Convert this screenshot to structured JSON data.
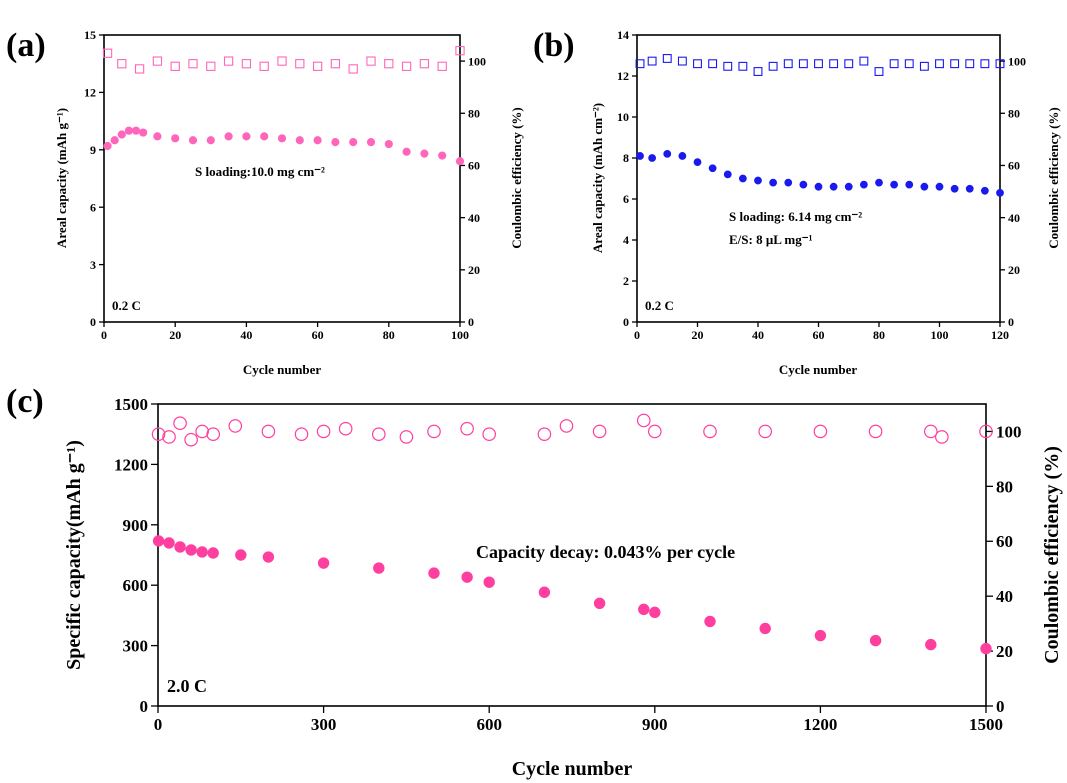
{
  "chart_data": [
    {
      "type": "scatter",
      "panel": "(a)",
      "xlabel": "Cycle number",
      "ylabel": "Areal capacity (mAh g⁻¹)",
      "ylabel_right": "Coulombic efficiency (%)",
      "xlim": [
        0,
        100
      ],
      "ylim": [
        0,
        15
      ],
      "ylim_right": [
        0,
        110
      ],
      "xticks": [
        0,
        20,
        40,
        60,
        80,
        100
      ],
      "yticks": [
        0,
        3,
        6,
        9,
        12,
        15
      ],
      "yticks_right": [
        0,
        20,
        40,
        60,
        80,
        100
      ],
      "rate_label": "0.2 C",
      "annotations": [
        "S loading:10.0 mg cm⁻²"
      ],
      "series": [
        {
          "axis": "left",
          "marker": "circle-filled",
          "color": "#ff66bb",
          "x": [
            1,
            3,
            5,
            7,
            9,
            11,
            15,
            20,
            25,
            30,
            35,
            40,
            45,
            50,
            55,
            60,
            65,
            70,
            75,
            80,
            85,
            90,
            95,
            100
          ],
          "y": [
            9.2,
            9.5,
            9.8,
            10.0,
            10.0,
            9.9,
            9.7,
            9.6,
            9.5,
            9.5,
            9.7,
            9.7,
            9.7,
            9.6,
            9.5,
            9.5,
            9.4,
            9.4,
            9.4,
            9.3,
            8.9,
            8.8,
            8.7,
            8.4
          ]
        },
        {
          "axis": "right",
          "marker": "square-open",
          "color": "#ff66bb",
          "x": [
            1,
            5,
            10,
            15,
            20,
            25,
            30,
            35,
            40,
            45,
            50,
            55,
            60,
            65,
            70,
            75,
            80,
            85,
            90,
            95,
            100
          ],
          "y": [
            103,
            99,
            97,
            100,
            98,
            99,
            98,
            100,
            99,
            98,
            100,
            99,
            98,
            99,
            97,
            100,
            99,
            98,
            99,
            98,
            104
          ]
        }
      ]
    },
    {
      "type": "scatter",
      "panel": "(b)",
      "xlabel": "Cycle number",
      "ylabel": "Areal capacity (mAh cm⁻²)",
      "ylabel_right": "Coulombic efficiency (%)",
      "xlim": [
        0,
        120
      ],
      "ylim": [
        0,
        14
      ],
      "ylim_right": [
        0,
        110
      ],
      "xticks": [
        0,
        20,
        40,
        60,
        80,
        100,
        120
      ],
      "yticks": [
        0,
        2,
        4,
        6,
        8,
        10,
        12,
        14
      ],
      "yticks_right": [
        0,
        20,
        40,
        60,
        80,
        100
      ],
      "rate_label": "0.2 C",
      "annotations": [
        "S loading: 6.14 mg cm⁻²",
        "E/S: 8 μL mg⁻¹"
      ],
      "series": [
        {
          "axis": "left",
          "marker": "circle-filled",
          "color": "#1a1aee",
          "x": [
            1,
            5,
            10,
            15,
            20,
            25,
            30,
            35,
            40,
            45,
            50,
            55,
            60,
            65,
            70,
            75,
            80,
            85,
            90,
            95,
            100,
            105,
            110,
            115,
            120
          ],
          "y": [
            8.1,
            8.0,
            8.2,
            8.1,
            7.8,
            7.5,
            7.2,
            7.0,
            6.9,
            6.8,
            6.8,
            6.7,
            6.6,
            6.6,
            6.6,
            6.7,
            6.8,
            6.7,
            6.7,
            6.6,
            6.6,
            6.5,
            6.5,
            6.4,
            6.3
          ]
        },
        {
          "axis": "right",
          "marker": "square-open",
          "color": "#1a1aee",
          "x": [
            1,
            5,
            10,
            15,
            20,
            25,
            30,
            35,
            40,
            45,
            50,
            55,
            60,
            65,
            70,
            75,
            80,
            85,
            90,
            95,
            100,
            105,
            110,
            115,
            120
          ],
          "y": [
            99,
            100,
            101,
            100,
            99,
            99,
            98,
            98,
            96,
            98,
            99,
            99,
            99,
            99,
            99,
            100,
            96,
            99,
            99,
            98,
            99,
            99,
            99,
            99,
            99
          ]
        }
      ]
    },
    {
      "type": "scatter",
      "panel": "(c)",
      "xlabel": "Cycle number",
      "ylabel": "Specific capacity(mAh g⁻¹)",
      "ylabel_right": "Coulombic efficiency (%)",
      "xlim": [
        0,
        1500
      ],
      "ylim": [
        0,
        1500
      ],
      "ylim_right": [
        0,
        110
      ],
      "xticks": [
        0,
        300,
        600,
        900,
        1200,
        1500
      ],
      "yticks": [
        0,
        300,
        600,
        900,
        1200,
        1500
      ],
      "yticks_right": [
        0,
        20,
        40,
        60,
        80,
        100
      ],
      "rate_label": "2.0 C",
      "annotations": [
        "Capacity decay: 0.043% per cycle"
      ],
      "series": [
        {
          "axis": "left",
          "marker": "circle-filled",
          "color": "#ff3fa0",
          "x": [
            1,
            20,
            40,
            60,
            80,
            100,
            150,
            200,
            300,
            400,
            500,
            560,
            600,
            700,
            800,
            880,
            900,
            1000,
            1100,
            1200,
            1300,
            1400,
            1500
          ],
          "y": [
            820,
            810,
            790,
            775,
            765,
            760,
            750,
            740,
            710,
            685,
            660,
            640,
            615,
            565,
            510,
            480,
            465,
            420,
            385,
            350,
            325,
            305,
            285
          ]
        },
        {
          "axis": "right",
          "marker": "circle-open",
          "color": "#ff3fa0",
          "x": [
            1,
            20,
            40,
            60,
            80,
            100,
            140,
            200,
            260,
            300,
            340,
            400,
            450,
            500,
            560,
            600,
            700,
            740,
            800,
            880,
            900,
            1000,
            1100,
            1200,
            1300,
            1400,
            1420,
            1500
          ],
          "y": [
            99,
            98,
            103,
            97,
            100,
            99,
            102,
            100,
            99,
            100,
            101,
            99,
            98,
            100,
            101,
            99,
            99,
            102,
            100,
            104,
            100,
            100,
            100,
            100,
            100,
            100,
            98,
            100
          ]
        }
      ]
    }
  ]
}
